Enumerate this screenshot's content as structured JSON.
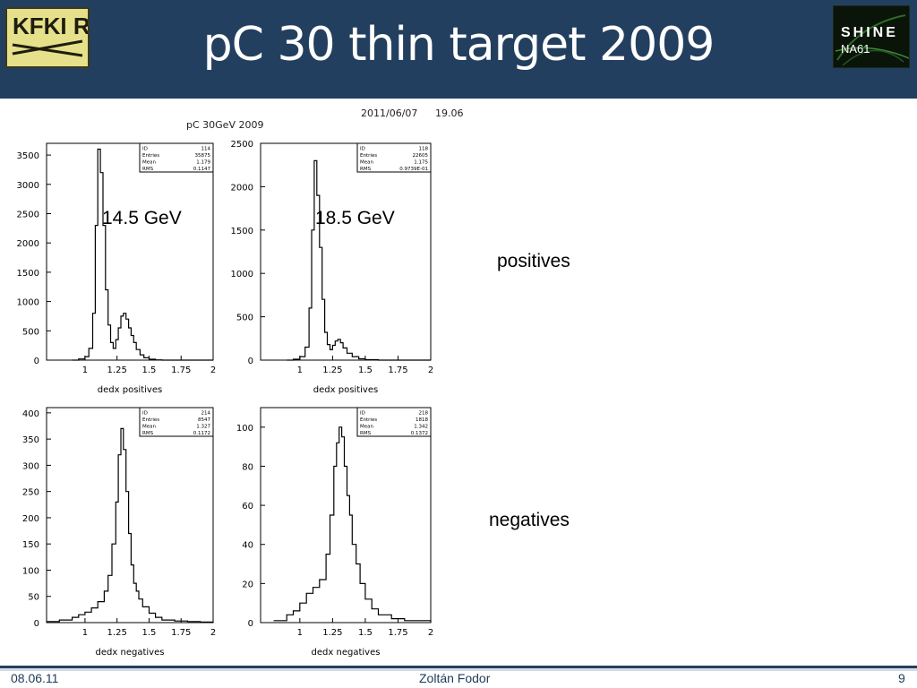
{
  "header": {
    "title": "pC 30 thin target 2009",
    "logo_left_text": "KFKI RMKI",
    "logo_right_text_top": "SHINE",
    "logo_right_text_bottom": "NA61"
  },
  "plot": {
    "canvas_title": "pC 30GeV 2009",
    "date": "2011/06/07",
    "time": "19.06"
  },
  "labels": {
    "energy_left": "14.5 GeV",
    "energy_right": "18.5 GeV",
    "positives": "positives",
    "negatives": "negatives"
  },
  "footer": {
    "date": "08.06.11",
    "author": "Zoltán Fodor",
    "page": "9"
  },
  "colors": {
    "header_bg": "#233f5f",
    "footer_text": "#1e3a5a"
  },
  "chart_data": [
    {
      "type": "histogram",
      "xlabel": "dedx positives",
      "xlim": [
        0.7,
        2
      ],
      "ylim": [
        0,
        3700
      ],
      "yticks": [
        0,
        500,
        1000,
        1500,
        2000,
        2500,
        3000,
        3500
      ],
      "ytick_labels": [
        "0",
        "500",
        "1000",
        "1500",
        "2000",
        "2500",
        "3000",
        "3500"
      ],
      "xticks": [
        1,
        1.25,
        1.5,
        1.75,
        2
      ],
      "xtick_labels": [
        "1",
        "1.25",
        "1.5",
        "1.75",
        "2"
      ],
      "stats": [
        [
          "ID",
          "114"
        ],
        [
          "Entries",
          "35875"
        ],
        [
          "Mean",
          "1.179"
        ],
        [
          "RMS",
          "0.1147"
        ]
      ],
      "x": [
        0.9,
        0.95,
        1.0,
        1.03,
        1.06,
        1.08,
        1.1,
        1.12,
        1.14,
        1.16,
        1.18,
        1.2,
        1.22,
        1.24,
        1.26,
        1.28,
        1.3,
        1.32,
        1.34,
        1.36,
        1.38,
        1.4,
        1.43,
        1.46,
        1.5,
        1.55,
        1.6,
        1.7,
        1.8,
        1.9,
        2.0
      ],
      "values": [
        0,
        20,
        60,
        200,
        800,
        2300,
        3600,
        3200,
        2300,
        1200,
        600,
        300,
        200,
        350,
        550,
        750,
        800,
        700,
        550,
        420,
        300,
        180,
        90,
        40,
        15,
        5,
        0,
        0,
        0,
        0,
        0
      ]
    },
    {
      "type": "histogram",
      "xlabel": "dedx positives",
      "xlim": [
        0.7,
        2
      ],
      "ylim": [
        0,
        2500
      ],
      "yticks": [
        0,
        500,
        1000,
        1500,
        2000,
        2500
      ],
      "ytick_labels": [
        "0",
        "500",
        "1000",
        "1500",
        "2000",
        "2500"
      ],
      "xticks": [
        1,
        1.25,
        1.5,
        1.75,
        2
      ],
      "xtick_labels": [
        "1",
        "1.25",
        "1.5",
        "1.75",
        "2"
      ],
      "stats": [
        [
          "ID",
          "118"
        ],
        [
          "Entries",
          "22605"
        ],
        [
          "Mean",
          "1.175"
        ],
        [
          "RMS",
          "0.9739E-01"
        ]
      ],
      "x": [
        0.9,
        0.95,
        1.0,
        1.04,
        1.07,
        1.09,
        1.11,
        1.13,
        1.15,
        1.17,
        1.19,
        1.21,
        1.23,
        1.25,
        1.27,
        1.29,
        1.31,
        1.33,
        1.36,
        1.4,
        1.45,
        1.5,
        1.6,
        1.7,
        1.8,
        1.9,
        2.0
      ],
      "values": [
        0,
        10,
        40,
        150,
        600,
        1500,
        2300,
        1900,
        1300,
        700,
        320,
        180,
        120,
        170,
        220,
        240,
        200,
        140,
        80,
        40,
        15,
        5,
        0,
        0,
        0,
        0,
        0
      ]
    },
    {
      "type": "histogram",
      "xlabel": "dedx negatives",
      "xlim": [
        0.7,
        2
      ],
      "ylim": [
        0,
        410
      ],
      "yticks": [
        0,
        50,
        100,
        150,
        200,
        250,
        300,
        350,
        400
      ],
      "ytick_labels": [
        "0",
        "50",
        "100",
        "150",
        "200",
        "250",
        "300",
        "350",
        "400"
      ],
      "xticks": [
        1,
        1.25,
        1.5,
        1.75,
        2
      ],
      "xtick_labels": [
        "1",
        "1.25",
        "1.5",
        "1.75",
        "2"
      ],
      "stats": [
        [
          "ID",
          "214"
        ],
        [
          "Entries",
          "8547"
        ],
        [
          "Mean",
          "1.327"
        ],
        [
          "RMS",
          "0.1172"
        ]
      ],
      "x": [
        0.7,
        0.8,
        0.9,
        0.95,
        1.0,
        1.05,
        1.1,
        1.15,
        1.18,
        1.21,
        1.24,
        1.26,
        1.28,
        1.3,
        1.32,
        1.34,
        1.36,
        1.38,
        1.4,
        1.42,
        1.45,
        1.5,
        1.55,
        1.6,
        1.7,
        1.8,
        1.9,
        2.0
      ],
      "values": [
        2,
        5,
        10,
        15,
        20,
        28,
        40,
        60,
        90,
        150,
        230,
        320,
        370,
        330,
        250,
        170,
        110,
        75,
        60,
        45,
        30,
        18,
        10,
        5,
        3,
        2,
        1,
        0
      ]
    },
    {
      "type": "histogram",
      "xlabel": "dedx negatives",
      "xlim": [
        0.7,
        2
      ],
      "ylim": [
        0,
        110
      ],
      "yticks": [
        0,
        20,
        40,
        60,
        80,
        100
      ],
      "ytick_labels": [
        "0",
        "20",
        "40",
        "60",
        "80",
        "100"
      ],
      "xticks": [
        1,
        1.25,
        1.5,
        1.75,
        2
      ],
      "xtick_labels": [
        "1",
        "1.25",
        "1.5",
        "1.75",
        "2"
      ],
      "stats": [
        [
          "ID",
          "218"
        ],
        [
          "Entries",
          "1818"
        ],
        [
          "Mean",
          "1.342"
        ],
        [
          "RMS",
          "0.1372"
        ]
      ],
      "x": [
        0.8,
        0.9,
        0.95,
        1.0,
        1.05,
        1.1,
        1.15,
        1.2,
        1.23,
        1.26,
        1.28,
        1.3,
        1.32,
        1.34,
        1.36,
        1.38,
        1.4,
        1.43,
        1.46,
        1.5,
        1.55,
        1.6,
        1.7,
        1.8,
        1.9,
        2.0
      ],
      "values": [
        1,
        4,
        6,
        10,
        15,
        18,
        22,
        35,
        55,
        80,
        92,
        100,
        95,
        80,
        65,
        55,
        40,
        30,
        20,
        12,
        7,
        4,
        2,
        1,
        1,
        0
      ]
    }
  ]
}
